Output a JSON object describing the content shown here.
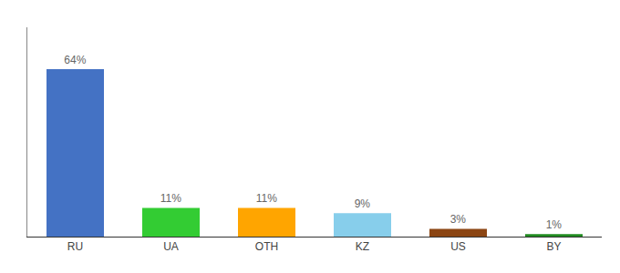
{
  "chart_data": {
    "type": "bar",
    "categories": [
      "RU",
      "UA",
      "OTH",
      "KZ",
      "US",
      "BY"
    ],
    "values": [
      64,
      11,
      11,
      9,
      3,
      1
    ],
    "value_labels": [
      "64%",
      "11%",
      "11%",
      "9%",
      "3%",
      "1%"
    ],
    "colors": [
      "#4472C4",
      "#33CC33",
      "#FFA500",
      "#87CEEB",
      "#8B4513",
      "#228B22"
    ],
    "ylim": [
      0,
      80
    ],
    "data_labels": true,
    "tick_labels": "x",
    "grid": false
  }
}
